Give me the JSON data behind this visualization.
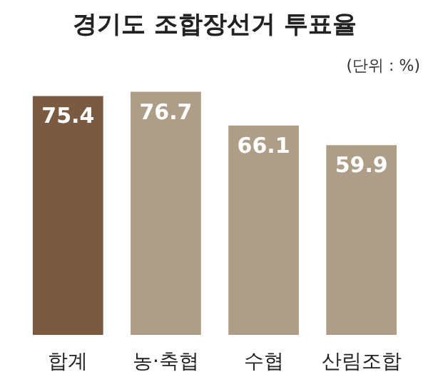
{
  "chart_data": {
    "type": "bar",
    "title": "경기도 조합장선거 투표율",
    "subtitle": "(단위 : %)",
    "categories": [
      "합계",
      "농·축협",
      "수협",
      "산림조합"
    ],
    "values": [
      75.4,
      76.7,
      66.1,
      59.9
    ],
    "colors": [
      "#7a5a40",
      "#ae9e88",
      "#ae9e88",
      "#ae9e88"
    ],
    "data_labels": true,
    "grid": false
  }
}
